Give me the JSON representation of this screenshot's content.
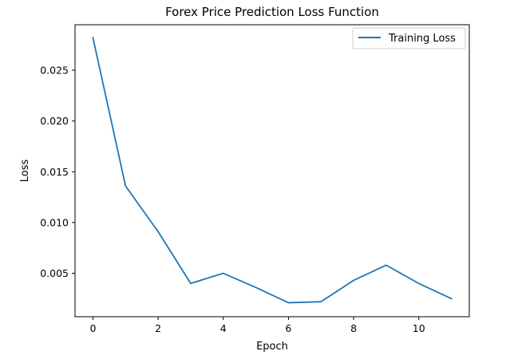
{
  "chart_data": {
    "type": "line",
    "title": "Forex Price Prediction Loss Function",
    "xlabel": "Epoch",
    "ylabel": "Loss",
    "xlim": [
      -0.55,
      11.55
    ],
    "ylim": [
      0.00072,
      0.02948
    ],
    "x_ticks": [
      0,
      2,
      4,
      6,
      8,
      10
    ],
    "x_tick_labels": [
      "0",
      "2",
      "4",
      "6",
      "8",
      "10"
    ],
    "y_ticks": [
      0.005,
      0.01,
      0.015,
      0.02,
      0.025
    ],
    "y_tick_labels": [
      "0.005",
      "0.010",
      "0.015",
      "0.020",
      "0.025"
    ],
    "grid": false,
    "legend_position": "top-right",
    "series": [
      {
        "name": "Training Loss",
        "color": "#1f77b4",
        "x": [
          0,
          1,
          2,
          3,
          4,
          5,
          6,
          7,
          8,
          9,
          10,
          11
        ],
        "y": [
          0.0282,
          0.0136,
          0.0091,
          0.004,
          0.005,
          0.0036,
          0.0021,
          0.0022,
          0.0043,
          0.0058,
          0.004,
          0.0025
        ]
      }
    ]
  }
}
